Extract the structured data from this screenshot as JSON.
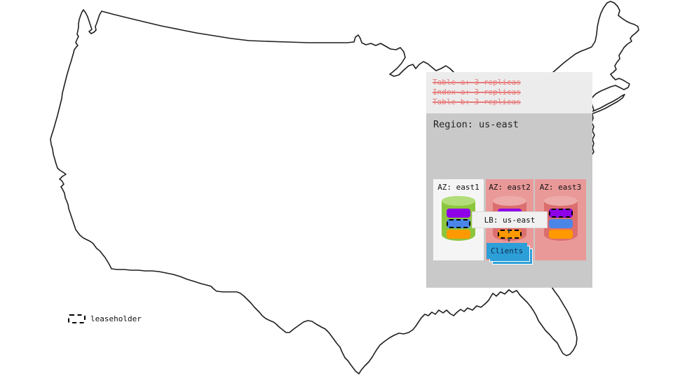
{
  "colors": {
    "map-stroke": "#1f1f1f",
    "panel-light": "#ececec",
    "panel-dark": "#c9c9c9",
    "policy-red": "#e87c7c",
    "az-ok-bg": "#f5f5f5",
    "az-down-bg": "#ea9999",
    "cyl-green": "#8cc63e",
    "cyl-green-top": "#b2dd7a",
    "cyl-red": "#dc6e6e",
    "cyl-red-top": "#ecaba8",
    "replica-purple": "#8d00e8",
    "replica-blue": "#4a86e8",
    "replica-orange": "#ff9900",
    "clients-blue": "#2d9fd8",
    "clients-text": "#0d2d4d"
  },
  "policies": {
    "lines": [
      "Table a: 3 replicas",
      "Index a: 3 replicas",
      "Table b: 3 replicas"
    ]
  },
  "region": {
    "title": "Region: us-east",
    "azs": [
      {
        "label": "AZ: east1",
        "variant": "ok",
        "bars": [
          {
            "color": "replica-purple",
            "leaseholder": false
          },
          {
            "color": "replica-blue",
            "leaseholder": true
          },
          {
            "color": "replica-orange",
            "leaseholder": false
          }
        ]
      },
      {
        "label": "AZ: east2",
        "variant": "red",
        "bars": [
          {
            "color": "replica-purple",
            "leaseholder": false
          },
          {
            "color": "replica-blue",
            "leaseholder": false
          },
          {
            "color": "replica-orange",
            "leaseholder": true
          }
        ]
      },
      {
        "label": "AZ: east3",
        "variant": "red",
        "bars": [
          {
            "color": "replica-purple",
            "leaseholder": true
          },
          {
            "color": "replica-blue",
            "leaseholder": false
          },
          {
            "color": "replica-orange",
            "leaseholder": false
          }
        ]
      }
    ],
    "lb_label": "LB: us-east",
    "clients_label": "Clients"
  },
  "legend": {
    "label": "leaseholder"
  }
}
